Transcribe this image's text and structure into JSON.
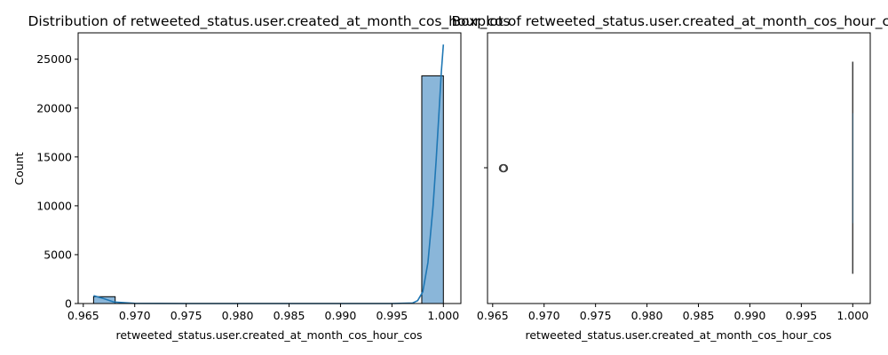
{
  "chart_data": [
    {
      "type": "bar",
      "subtype": "histogram_with_kde",
      "title": "Distribution of retweeted_status.user.created_at_month_cos_hour_cos",
      "xlabel": "retweeted_status.user.created_at_month_cos_hour_cos",
      "ylabel": "Count",
      "xlim": [
        0.9645,
        1.0017
      ],
      "ylim": [
        0,
        27700
      ],
      "x_ticks": [
        0.965,
        0.97,
        0.975,
        0.98,
        0.985,
        0.99,
        0.995,
        1.0
      ],
      "x_tick_labels": [
        "0.965",
        "0.970",
        "0.975",
        "0.980",
        "0.985",
        "0.990",
        "0.995",
        "1.000"
      ],
      "y_ticks": [
        0,
        5000,
        10000,
        15000,
        20000,
        25000
      ],
      "y_tick_labels": [
        "0",
        "5000",
        "10000",
        "15000",
        "20000",
        "25000"
      ],
      "bins": [
        {
          "x0": 0.966,
          "x1": 0.9681,
          "count": 700
        },
        {
          "x0": 0.9681,
          "x1": 0.9702,
          "count": 0
        },
        {
          "x0": 0.9702,
          "x1": 0.9724,
          "count": 0
        },
        {
          "x0": 0.9724,
          "x1": 0.9745,
          "count": 0
        },
        {
          "x0": 0.9745,
          "x1": 0.9766,
          "count": 0
        },
        {
          "x0": 0.9766,
          "x1": 0.9787,
          "count": 0
        },
        {
          "x0": 0.9787,
          "x1": 0.9809,
          "count": 0
        },
        {
          "x0": 0.9809,
          "x1": 0.983,
          "count": 0
        },
        {
          "x0": 0.983,
          "x1": 0.9851,
          "count": 0
        },
        {
          "x0": 0.9851,
          "x1": 0.9872,
          "count": 0
        },
        {
          "x0": 0.9872,
          "x1": 0.9894,
          "count": 0
        },
        {
          "x0": 0.9894,
          "x1": 0.9915,
          "count": 0
        },
        {
          "x0": 0.9915,
          "x1": 0.9936,
          "count": 0
        },
        {
          "x0": 0.9936,
          "x1": 0.9957,
          "count": 0
        },
        {
          "x0": 0.9957,
          "x1": 0.9979,
          "count": 0
        },
        {
          "x0": 0.9979,
          "x1": 1.0,
          "count": 23300
        }
      ],
      "kde": {
        "x": [
          0.966,
          0.967,
          0.968,
          0.97,
          0.975,
          0.98,
          0.985,
          0.99,
          0.995,
          0.997,
          0.9975,
          0.998,
          0.9985,
          0.999,
          0.9993,
          0.9996,
          0.9998,
          1.0
        ],
        "y": [
          800,
          500,
          150,
          20,
          0,
          0,
          0,
          0,
          0,
          50,
          300,
          1200,
          4200,
          10000,
          14700,
          20000,
          23700,
          26500
        ]
      },
      "colors": {
        "bar_fill": "#8ab6d9",
        "bar_edge": "#000000",
        "kde_line": "#1f77b4"
      },
      "grid": false,
      "legend": "none"
    },
    {
      "type": "boxplot",
      "title": "Boxplot of retweeted_status.user.created_at_month_cos_hour_cos",
      "xlabel": "retweeted_status.user.created_at_month_cos_hour_cos",
      "ylabel": "",
      "xlim": [
        0.9645,
        1.0017
      ],
      "x_ticks": [
        0.965,
        0.97,
        0.975,
        0.98,
        0.985,
        0.99,
        0.995,
        1.0
      ],
      "x_tick_labels": [
        "0.965",
        "0.970",
        "0.975",
        "0.980",
        "0.985",
        "0.990",
        "0.995",
        "1.000"
      ],
      "box": {
        "q1": 1.0,
        "median": 1.0,
        "q3": 1.0,
        "whisker_low": 1.0,
        "whisker_high": 1.0
      },
      "outliers": [
        0.966,
        0.96605,
        0.9661
      ],
      "colors": {
        "box": "#1f77b4",
        "line": "#3d3d3d",
        "outlier_edge": "#3d3d3d"
      },
      "grid": false,
      "legend": "none"
    }
  ]
}
